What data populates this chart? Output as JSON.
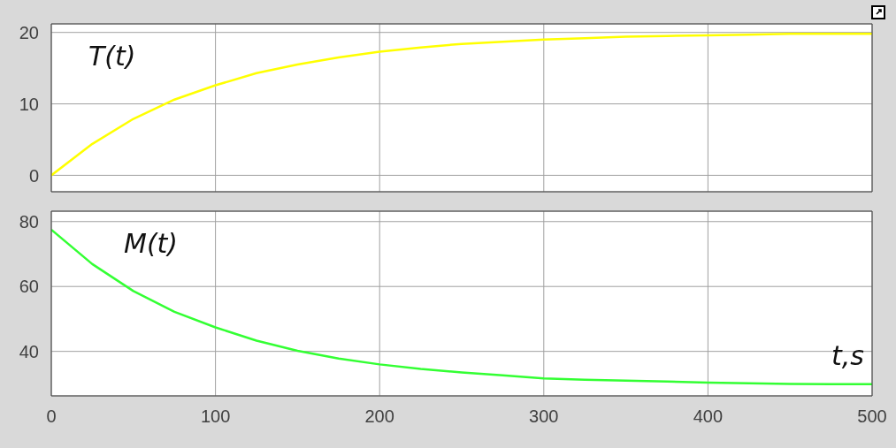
{
  "chart_data": [
    {
      "type": "line",
      "x": [
        0,
        25,
        50,
        75,
        100,
        125,
        150,
        175,
        200,
        225,
        250,
        275,
        300,
        325,
        350,
        375,
        400,
        425,
        450,
        475,
        500
      ],
      "series": [
        {
          "name": "T(t)",
          "color": "#ffff00",
          "values": [
            0,
            4.4,
            7.9,
            10.6,
            12.6,
            14.3,
            15.5,
            16.5,
            17.3,
            17.9,
            18.4,
            18.7,
            19.0,
            19.2,
            19.4,
            19.5,
            19.6,
            19.7,
            19.8,
            19.8,
            19.8
          ]
        }
      ],
      "xlim": [
        0,
        500
      ],
      "xticks": [
        0,
        100,
        200,
        300,
        400,
        500
      ],
      "ylim": [
        -2.3,
        21.2
      ],
      "yticks": [
        0,
        10,
        20
      ],
      "grid": true,
      "tick_labels": "y"
    },
    {
      "type": "line",
      "x": [
        0,
        25,
        50,
        75,
        100,
        125,
        150,
        175,
        200,
        225,
        250,
        275,
        300,
        325,
        350,
        375,
        400,
        425,
        450,
        475,
        500
      ],
      "series": [
        {
          "name": "M(t)",
          "color": "#33ff33",
          "values": [
            77.5,
            66.9,
            58.6,
            52.2,
            47.4,
            43.3,
            40.2,
            37.8,
            36.0,
            34.6,
            33.5,
            32.6,
            31.7,
            31.3,
            31.0,
            30.7,
            30.4,
            30.2,
            30.0,
            29.9,
            29.9
          ]
        }
      ],
      "xlim": [
        0,
        500
      ],
      "xticks": [
        0,
        100,
        200,
        300,
        400,
        500
      ],
      "ylim": [
        26.3,
        83.2
      ],
      "yticks": [
        40,
        60,
        80
      ],
      "grid": true,
      "xlabel": "t,s"
    }
  ]
}
